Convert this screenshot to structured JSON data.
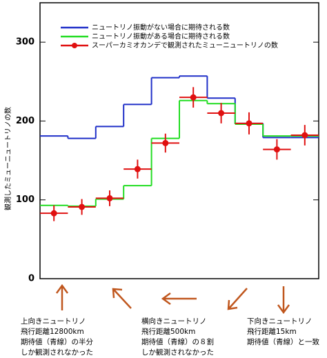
{
  "chart_data": {
    "type": "step",
    "y_label": "観測したミューニュートリノの数",
    "categories": [
      null,
      null,
      null,
      null,
      null,
      null,
      null,
      null,
      null,
      null
    ],
    "ylim": [
      0,
      350
    ],
    "yticks": [
      0,
      100,
      200,
      300
    ],
    "legend": "upper left",
    "series": [
      {
        "name": "ニュートリノ振動がない場合に期待される数",
        "color": "#1f2fc8",
        "kind": "step",
        "values": [
          181,
          178,
          193,
          221,
          255,
          257,
          229,
          197,
          179,
          179
        ]
      },
      {
        "name": "ニュートリノ振動がある場合に期待される数",
        "color": "#22dd22",
        "kind": "step",
        "values": [
          93,
          92,
          101,
          118,
          178,
          226,
          222,
          196,
          181,
          181
        ]
      },
      {
        "name": "スーパーカミオカンデで観測されたミューニュートリノの数",
        "color": "#e01010",
        "kind": "points",
        "values": [
          83,
          91,
          102,
          139,
          172,
          230,
          210,
          197,
          164,
          182
        ],
        "errors": [
          10,
          10,
          10,
          12,
          12,
          13,
          13,
          14,
          13,
          13
        ]
      }
    ],
    "annotations": [
      {
        "lines": [
          "上向きニュートリノ",
          "飛行距離12800km",
          "期待値（青線）の半分",
          "しか観測されなかった"
        ]
      },
      {
        "lines": [
          "横向きニュートリノ",
          "飛行距離500km",
          "期待値（青線）の８割",
          "しか観測されなかった"
        ]
      },
      {
        "lines": [
          "下向きニュートリノ",
          "飛行距離15km",
          "期待値（青線）と一致"
        ]
      }
    ]
  }
}
